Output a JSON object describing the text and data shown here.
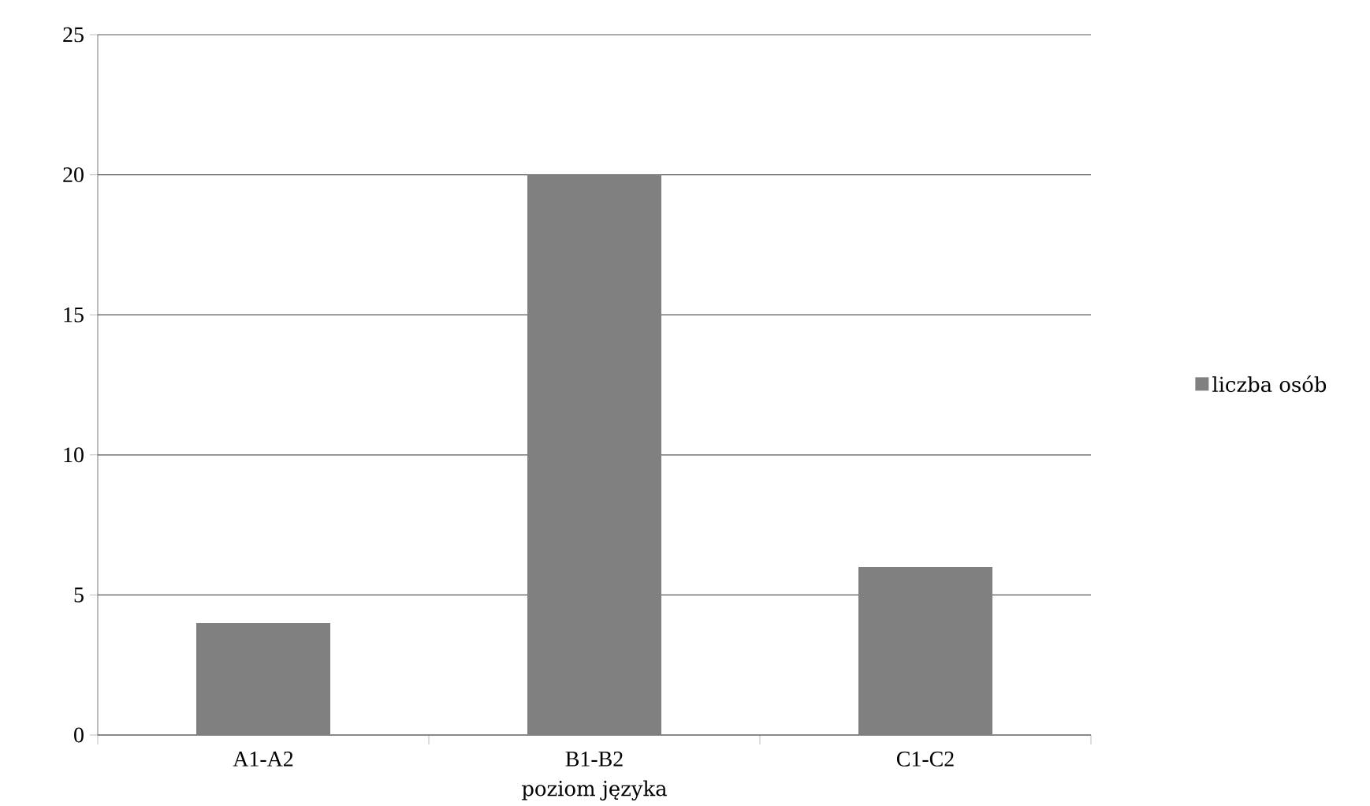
{
  "chart_data": {
    "type": "bar",
    "xlabel": "poziom języka",
    "categories": [
      "A1-A2",
      "B1-B2",
      "C1-C2"
    ],
    "series": [
      {
        "name": "liczba osób",
        "color": "#808080",
        "values": [
          4,
          20,
          6
        ]
      }
    ],
    "ylim": [
      0,
      25
    ],
    "yticks": [
      0,
      5,
      10,
      15,
      20,
      25
    ],
    "grid": "y",
    "legend": "right"
  }
}
